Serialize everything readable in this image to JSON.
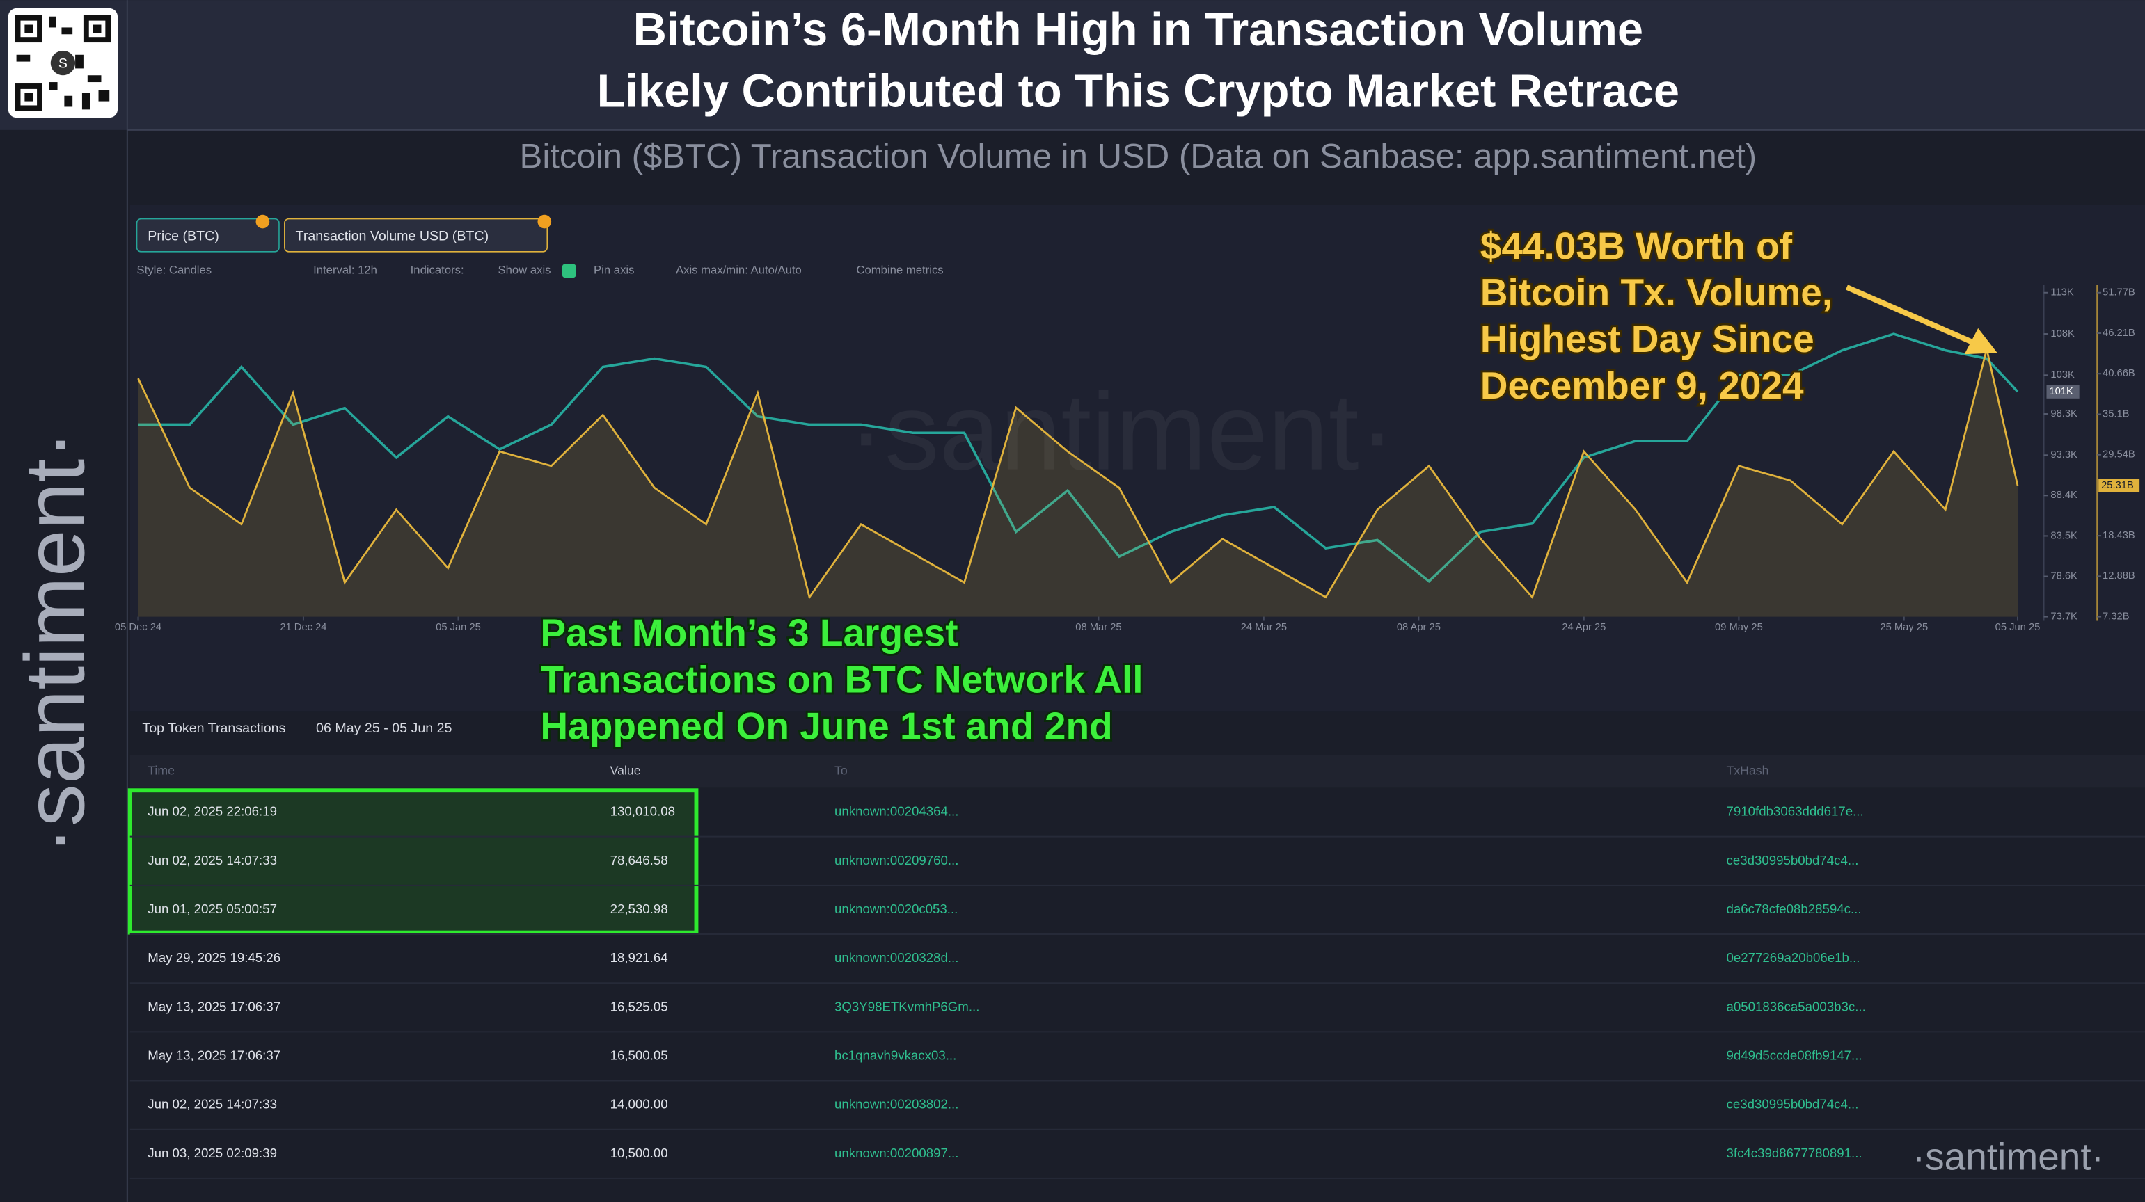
{
  "header": {
    "title_lines": [
      "Bitcoin’s 6-Month High in Transaction Volume",
      "Likely Contributed to This Crypto Market Retrace"
    ],
    "subtitle": "Bitcoin ($BTC) Transaction Volume in USD (Data on Sanbase: app.santiment.net)"
  },
  "branding": {
    "watermark": "·santiment·"
  },
  "toolbar": {
    "items": [
      "Style: Candles",
      "Interval: 12h",
      "Indicators:",
      "Show axis",
      "Pin axis",
      "Axis max/min: Auto/Auto",
      "Combine metrics"
    ]
  },
  "chart_data": {
    "type": "line",
    "x": [
      "2024-12-05",
      "2024-12-10",
      "2024-12-15",
      "2024-12-20",
      "2024-12-25",
      "2024-12-30",
      "2025-01-04",
      "2025-01-09",
      "2025-01-14",
      "2025-01-19",
      "2025-01-24",
      "2025-01-29",
      "2025-02-03",
      "2025-02-08",
      "2025-02-13",
      "2025-02-18",
      "2025-02-23",
      "2025-02-28",
      "2025-03-05",
      "2025-03-10",
      "2025-03-15",
      "2025-03-20",
      "2025-03-25",
      "2025-03-30",
      "2025-04-04",
      "2025-04-09",
      "2025-04-14",
      "2025-04-19",
      "2025-04-24",
      "2025-04-29",
      "2025-05-04",
      "2025-05-09",
      "2025-05-14",
      "2025-05-19",
      "2025-05-24",
      "2025-05-29",
      "2025-06-02",
      "2025-06-05"
    ],
    "series": [
      {
        "name": "Price (BTC)",
        "color": "#26a69a",
        "axis": "y",
        "last_label": "101K",
        "values": [
          97,
          97,
          104,
          97,
          99,
          93,
          98,
          94,
          97,
          104,
          105,
          104,
          98,
          97,
          97,
          96,
          96,
          84,
          89,
          81,
          84,
          86,
          87,
          82,
          83,
          78,
          84,
          85,
          93,
          95,
          95,
          103,
          103,
          106,
          108,
          106,
          105,
          101
        ]
      },
      {
        "name": "Transaction Volume USD (BTC)",
        "color": "#e0b23c",
        "axis": "y2",
        "last_label": "25.31B",
        "values": [
          40,
          25,
          20,
          38,
          12,
          22,
          14,
          30,
          28,
          35,
          25,
          20,
          38,
          10,
          20,
          16,
          12,
          36,
          30,
          25,
          12,
          18,
          14,
          10,
          22,
          28,
          18,
          10,
          30,
          22,
          12,
          28,
          26,
          20,
          30,
          22,
          44.03,
          25.31
        ]
      }
    ],
    "xlim": [
      "2024-12-05",
      "2025-06-07"
    ],
    "xticks": [
      {
        "value": "2024-12-05",
        "label": "05 Dec 24"
      },
      {
        "value": "2024-12-21",
        "label": "21 Dec 24"
      },
      {
        "value": "2025-01-05",
        "label": "05 Jan 25"
      },
      {
        "value": "2025-03-08",
        "label": "08 Mar 25"
      },
      {
        "value": "2025-03-24",
        "label": "24 Mar 25"
      },
      {
        "value": "2025-04-08",
        "label": "08 Apr 25"
      },
      {
        "value": "2025-04-24",
        "label": "24 Apr 25"
      },
      {
        "value": "2025-05-09",
        "label": "09 May 25"
      },
      {
        "value": "2025-05-25",
        "label": "25 May 25"
      },
      {
        "value": "2025-06-05",
        "label": "05 Jun 25"
      }
    ],
    "ylim": [
      73.7,
      113
    ],
    "yticks": [
      {
        "value": 113,
        "label": "113K"
      },
      {
        "value": 108,
        "label": "108K"
      },
      {
        "value": 103,
        "label": "103K"
      },
      {
        "value": 98.3,
        "label": "98.3K"
      },
      {
        "value": 93.3,
        "label": "93.3K"
      },
      {
        "value": 88.4,
        "label": "88.4K"
      },
      {
        "value": 83.5,
        "label": "83.5K"
      },
      {
        "value": 78.6,
        "label": "78.6K"
      },
      {
        "value": 73.7,
        "label": "73.7K"
      }
    ],
    "y2lim": [
      7.32,
      51.77
    ],
    "y2ticks": [
      {
        "value": 51.77,
        "label": "51.77B"
      },
      {
        "value": 46.21,
        "label": "46.21B"
      },
      {
        "value": 40.66,
        "label": "40.66B"
      },
      {
        "value": 35.1,
        "label": "35.1B"
      },
      {
        "value": 29.54,
        "label": "29.54B"
      },
      {
        "value": 18.43,
        "label": "18.43B"
      },
      {
        "value": 12.88,
        "label": "12.88B"
      },
      {
        "value": 7.32,
        "label": "7.32B"
      }
    ],
    "annotations": [
      [
        "$44.03B Worth of",
        "Bitcoin Tx. Volume,",
        "Highest Day Since",
        "December 9, 2024"
      ],
      [
        "Past Month’s 3 Largest",
        "Transactions on BTC Network All",
        "Happened On June 1st and 2nd"
      ]
    ]
  },
  "table": {
    "title": "Top Token Transactions",
    "date_range": "06 May 25 - 05 Jun 25",
    "columns": [
      "Time",
      "Value",
      "To",
      "TxHash"
    ],
    "rows": [
      [
        "Jun 02, 2025 22:06:19",
        "130,010.08",
        "unknown:00204364...",
        "7910fdb3063ddd617e..."
      ],
      [
        "Jun 02, 2025 14:07:33",
        "78,646.58",
        "unknown:00209760...",
        "ce3d30995b0bd74c4..."
      ],
      [
        "Jun 01, 2025 05:00:57",
        "22,530.98",
        "unknown:0020c053...",
        "da6c78cfe08b28594c..."
      ],
      [
        "May 29, 2025 19:45:26",
        "18,921.64",
        "unknown:0020328d...",
        "0e277269a20b06e1b..."
      ],
      [
        "May 13, 2025 17:06:37",
        "16,525.05",
        "3Q3Y98ETKvmhP6Gm...",
        "a0501836ca5a003b3c..."
      ],
      [
        "May 13, 2025 17:06:37",
        "16,500.05",
        "bc1qnavh9vkacx03...",
        "9d49d5ccde08fb9147..."
      ],
      [
        "Jun 02, 2025 14:07:33",
        "14,000.00",
        "unknown:00203802...",
        "ce3d30995b0bd74c4..."
      ],
      [
        "Jun 03, 2025 02:09:39",
        "10,500.00",
        "unknown:00200897...",
        "3fc4c39d8677780891..."
      ]
    ]
  }
}
